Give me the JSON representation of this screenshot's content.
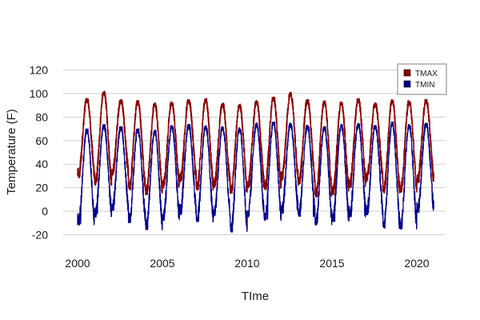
{
  "chart_data": {
    "type": "line",
    "title": "",
    "xlabel": "TIme",
    "ylabel": "Temperature (F)",
    "xlim": [
      2000.0,
      2021.0
    ],
    "ylim": [
      -30,
      125
    ],
    "x_ticks": [
      2000,
      2005,
      2010,
      2015,
      2020
    ],
    "y_ticks": [
      -20,
      0,
      20,
      40,
      60,
      80,
      100,
      120
    ],
    "grid": "horizontal",
    "legend_position": "top-right",
    "series": [
      {
        "name": "TMAX",
        "color": "#8b0000",
        "annual_peaks": [
          {
            "x": 2000.55,
            "y": 96
          },
          {
            "x": 2001.55,
            "y": 102
          },
          {
            "x": 2002.55,
            "y": 95
          },
          {
            "x": 2003.55,
            "y": 94
          },
          {
            "x": 2004.55,
            "y": 92
          },
          {
            "x": 2005.55,
            "y": 93
          },
          {
            "x": 2006.55,
            "y": 95
          },
          {
            "x": 2007.55,
            "y": 96
          },
          {
            "x": 2008.55,
            "y": 92
          },
          {
            "x": 2009.55,
            "y": 91
          },
          {
            "x": 2010.55,
            "y": 94
          },
          {
            "x": 2011.55,
            "y": 97
          },
          {
            "x": 2012.55,
            "y": 101
          },
          {
            "x": 2013.55,
            "y": 95
          },
          {
            "x": 2014.55,
            "y": 94
          },
          {
            "x": 2015.55,
            "y": 93
          },
          {
            "x": 2016.55,
            "y": 96
          },
          {
            "x": 2017.55,
            "y": 92
          },
          {
            "x": 2018.55,
            "y": 95
          },
          {
            "x": 2019.55,
            "y": 94
          },
          {
            "x": 2020.55,
            "y": 95
          }
        ],
        "annual_troughs": [
          {
            "x": 2000.05,
            "y": 28
          },
          {
            "x": 2001.05,
            "y": 22
          },
          {
            "x": 2002.05,
            "y": 30
          },
          {
            "x": 2003.05,
            "y": 18
          },
          {
            "x": 2004.05,
            "y": 14
          },
          {
            "x": 2005.05,
            "y": 20
          },
          {
            "x": 2006.05,
            "y": 25
          },
          {
            "x": 2007.05,
            "y": 18
          },
          {
            "x": 2008.05,
            "y": 20
          },
          {
            "x": 2009.05,
            "y": 15
          },
          {
            "x": 2010.05,
            "y": 20
          },
          {
            "x": 2011.05,
            "y": 18
          },
          {
            "x": 2012.05,
            "y": 26
          },
          {
            "x": 2013.05,
            "y": 22
          },
          {
            "x": 2014.05,
            "y": 12
          },
          {
            "x": 2015.05,
            "y": 14
          },
          {
            "x": 2016.05,
            "y": 20
          },
          {
            "x": 2017.05,
            "y": 25
          },
          {
            "x": 2018.05,
            "y": 15
          },
          {
            "x": 2019.05,
            "y": 16
          },
          {
            "x": 2020.05,
            "y": 24
          }
        ]
      },
      {
        "name": "TMIN",
        "color": "#00008b",
        "annual_peaks": [
          {
            "x": 2000.58,
            "y": 70
          },
          {
            "x": 2001.58,
            "y": 74
          },
          {
            "x": 2002.58,
            "y": 72
          },
          {
            "x": 2003.58,
            "y": 70
          },
          {
            "x": 2004.58,
            "y": 69
          },
          {
            "x": 2005.58,
            "y": 73
          },
          {
            "x": 2006.58,
            "y": 74
          },
          {
            "x": 2007.58,
            "y": 73
          },
          {
            "x": 2008.58,
            "y": 72
          },
          {
            "x": 2009.58,
            "y": 71
          },
          {
            "x": 2010.58,
            "y": 75
          },
          {
            "x": 2011.58,
            "y": 76
          },
          {
            "x": 2012.58,
            "y": 75
          },
          {
            "x": 2013.58,
            "y": 73
          },
          {
            "x": 2014.58,
            "y": 72
          },
          {
            "x": 2015.58,
            "y": 74
          },
          {
            "x": 2016.58,
            "y": 75
          },
          {
            "x": 2017.58,
            "y": 73
          },
          {
            "x": 2018.58,
            "y": 76
          },
          {
            "x": 2019.58,
            "y": 74
          },
          {
            "x": 2020.58,
            "y": 75
          }
        ],
        "annual_troughs": [
          {
            "x": 2000.05,
            "y": -12
          },
          {
            "x": 2001.05,
            "y": -5
          },
          {
            "x": 2002.05,
            "y": 0
          },
          {
            "x": 2003.05,
            "y": -10
          },
          {
            "x": 2004.05,
            "y": -16
          },
          {
            "x": 2005.05,
            "y": -8
          },
          {
            "x": 2006.05,
            "y": -3
          },
          {
            "x": 2007.05,
            "y": -10
          },
          {
            "x": 2008.05,
            "y": -5
          },
          {
            "x": 2009.05,
            "y": -18
          },
          {
            "x": 2010.05,
            "y": -5
          },
          {
            "x": 2011.05,
            "y": -8
          },
          {
            "x": 2012.05,
            "y": -2
          },
          {
            "x": 2013.05,
            "y": -5
          },
          {
            "x": 2014.05,
            "y": -12
          },
          {
            "x": 2015.05,
            "y": -10
          },
          {
            "x": 2016.05,
            "y": -5
          },
          {
            "x": 2017.05,
            "y": -3
          },
          {
            "x": 2018.05,
            "y": -15
          },
          {
            "x": 2019.05,
            "y": -16
          },
          {
            "x": 2020.05,
            "y": -2
          }
        ]
      }
    ]
  }
}
